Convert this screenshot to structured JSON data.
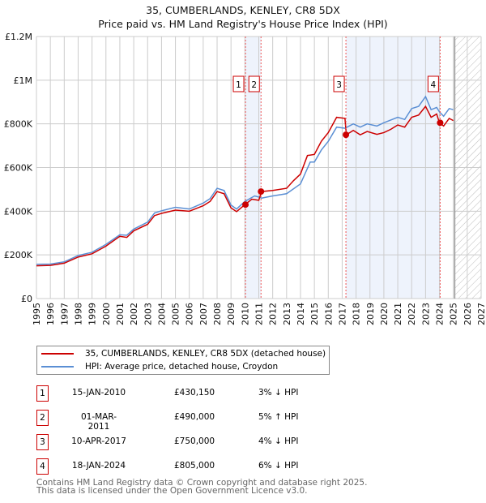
{
  "title": "35, CUMBERLANDS, KENLEY, CR8 5DX",
  "subtitle": "Price paid vs. HM Land Registry's House Price Index (HPI)",
  "chart_data": {
    "type": "line",
    "xlim": [
      1995,
      2027
    ],
    "ylim": [
      0,
      1200000
    ],
    "yticks": [
      {
        "v": 0,
        "l": "£0"
      },
      {
        "v": 200000,
        "l": "£200K"
      },
      {
        "v": 400000,
        "l": "£400K"
      },
      {
        "v": 600000,
        "l": "£600K"
      },
      {
        "v": 800000,
        "l": "£800K"
      },
      {
        "v": 1000000,
        "l": "£1M"
      },
      {
        "v": 1200000,
        "l": "£1.2M"
      }
    ],
    "xticks": [
      "1995",
      "1996",
      "1997",
      "1998",
      "1999",
      "2000",
      "2001",
      "2002",
      "2003",
      "2004",
      "2005",
      "2006",
      "2007",
      "2008",
      "2009",
      "2010",
      "2011",
      "2012",
      "2013",
      "2014",
      "2015",
      "2016",
      "2017",
      "2018",
      "2019",
      "2020",
      "2021",
      "2022",
      "2023",
      "2024",
      "2025",
      "2026",
      "2027"
    ],
    "series": [
      {
        "name": "35, CUMBERLANDS, KENLEY, CR8 5DX (detached house)",
        "color": "#cc0000",
        "x": [
          1995,
          1996,
          1997,
          1998,
          1999,
          2000,
          2001,
          2001.5,
          2002,
          2003,
          2003.5,
          2004,
          2005,
          2006,
          2007,
          2007.5,
          2008,
          2008.5,
          2009,
          2009.4,
          2010,
          2010.5,
          2011,
          2011.2,
          2012,
          2013,
          2013.5,
          2014,
          2014.5,
          2015,
          2015.5,
          2016,
          2016.6,
          2017.2,
          2017.3,
          2017.8,
          2018.3,
          2018.8,
          2019.5,
          2020,
          2020.5,
          2021,
          2021.5,
          2022,
          2022.5,
          2023,
          2023.4,
          2023.8,
          2024,
          2024.3,
          2024.7,
          2025
        ],
        "y": [
          150,
          152,
          162,
          190,
          205,
          240,
          285,
          280,
          310,
          340,
          380,
          390,
          405,
          400,
          425,
          445,
          490,
          480,
          415,
          398,
          430,
          455,
          450,
          490,
          495,
          505,
          540,
          570,
          655,
          660,
          720,
          760,
          830,
          825,
          750,
          770,
          750,
          765,
          752,
          760,
          775,
          795,
          785,
          830,
          840,
          880,
          830,
          845,
          805,
          790,
          825,
          815
        ]
      },
      {
        "name": "HPI: Average price, detached house, Croydon",
        "color": "#5b8fd4",
        "x": [
          1995,
          1996,
          1997,
          1998,
          1999,
          2000,
          2001,
          2001.5,
          2002,
          2003,
          2003.5,
          2004,
          2005,
          2006,
          2007,
          2007.5,
          2008,
          2008.5,
          2009,
          2009.4,
          2010,
          2010.7,
          2011,
          2011.2,
          2012,
          2013,
          2014,
          2014.7,
          2015,
          2015.5,
          2016,
          2016.6,
          2017.2,
          2017.8,
          2018.3,
          2018.8,
          2019.5,
          2020,
          2021,
          2021.5,
          2022,
          2022.5,
          2023,
          2023.4,
          2023.8,
          2024,
          2024.3,
          2024.7,
          2025
        ],
        "y": [
          157,
          158,
          168,
          197,
          212,
          248,
          292,
          290,
          318,
          350,
          392,
          402,
          418,
          410,
          437,
          458,
          505,
          495,
          428,
          410,
          445,
          470,
          465,
          460,
          470,
          480,
          525,
          625,
          625,
          680,
          720,
          785,
          780,
          800,
          785,
          800,
          790,
          805,
          830,
          820,
          870,
          880,
          925,
          865,
          875,
          855,
          835,
          870,
          865
        ]
      }
    ],
    "sales": [
      {
        "n": "1",
        "x": 2010.04,
        "price": 430150,
        "date": "15-JAN-2010",
        "price_label": "£430,150",
        "hpi": "3% ↓ HPI"
      },
      {
        "n": "2",
        "x": 2011.16,
        "price": 490000,
        "date": "01-MAR-2011",
        "price_label": "£490,000",
        "hpi": "5% ↑ HPI"
      },
      {
        "n": "3",
        "x": 2017.27,
        "price": 750000,
        "date": "10-APR-2017",
        "price_label": "£750,000",
        "hpi": "4% ↓ HPI"
      },
      {
        "n": "4",
        "x": 2024.05,
        "price": 805000,
        "date": "18-JAN-2024",
        "price_label": "£805,000",
        "hpi": "6% ↓ HPI"
      }
    ],
    "forecast_start": 2025.1
  },
  "footer": [
    "Contains HM Land Registry data © Crown copyright and database right 2025.",
    "This data is licensed under the Open Government Licence v3.0."
  ]
}
